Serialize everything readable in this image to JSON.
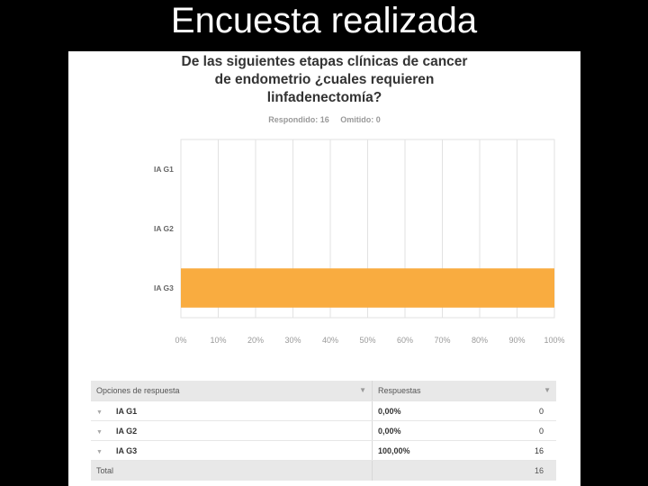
{
  "slide": {
    "title": "Encuesta realizada"
  },
  "question": {
    "lines": [
      "De las siguientes etapas clínicas de cancer",
      "de endometrio ¿cuales requieren",
      "linfadenectomía?"
    ],
    "answered": "Respondido: 16",
    "skipped": "Omitido: 0"
  },
  "chart_data": {
    "type": "bar",
    "orientation": "horizontal",
    "categories": [
      "IA G1",
      "IA G2",
      "IA G3"
    ],
    "values": [
      0,
      0,
      100
    ],
    "xlim": [
      0,
      100
    ],
    "xtick_labels": [
      "0%",
      "10%",
      "20%",
      "30%",
      "40%",
      "50%",
      "60%",
      "70%",
      "80%",
      "90%",
      "100%"
    ],
    "bar_color": "#f9ac40",
    "grid": true
  },
  "table": {
    "headers": [
      "Opciones de respuesta",
      "Respuestas"
    ],
    "rows": [
      {
        "option": "IA G1",
        "percent": "0,00%",
        "count": "0"
      },
      {
        "option": "IA G2",
        "percent": "0,00%",
        "count": "0"
      },
      {
        "option": "IA G3",
        "percent": "100,00%",
        "count": "16"
      }
    ],
    "total_label": "Total",
    "total_value": "16"
  }
}
